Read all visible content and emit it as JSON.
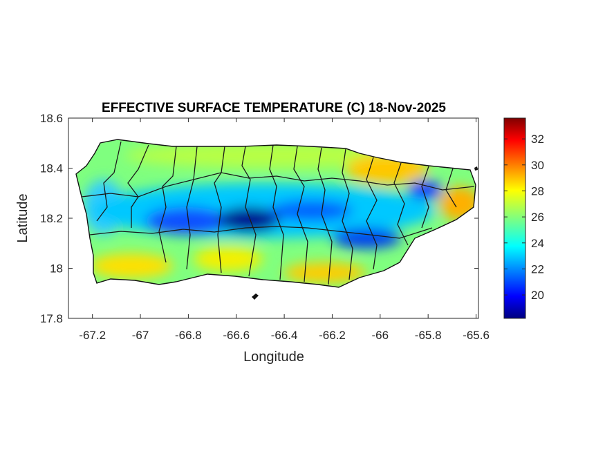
{
  "chart_data": {
    "type": "heatmap",
    "title": "EFFECTIVE SURFACE TEMPERATURE (C) 18-Nov-2025",
    "xlabel": "Longitude",
    "ylabel": "Latitude",
    "xlim": [
      -67.3,
      -65.59
    ],
    "ylim": [
      17.8,
      18.6
    ],
    "xticks": [
      -67.2,
      -67,
      -66.8,
      -66.6,
      -66.4,
      -66.2,
      -66,
      -65.8,
      -65.6
    ],
    "xtick_labels": [
      "-67.2",
      "-67",
      "-66.8",
      "-66.6",
      "-66.4",
      "-66.2",
      "-66",
      "-65.8",
      "-65.6"
    ],
    "yticks": [
      17.8,
      18,
      18.2,
      18.4,
      18.6
    ],
    "ytick_labels": [
      "17.8",
      "18",
      "18.2",
      "18.4",
      "18.6"
    ],
    "colorbar": {
      "colormap": "jet",
      "limits": [
        18.2,
        33.6
      ],
      "ticks": [
        20,
        22,
        24,
        26,
        28,
        30,
        32
      ],
      "tick_labels": [
        "20",
        "22",
        "24",
        "26",
        "28",
        "30",
        "32"
      ]
    },
    "value_pattern": "cooler (19-24 C) along central mountain spine and east peak near -65.8; warmer (26-30 C) along north-east and south coasts",
    "box": true,
    "grid": false
  }
}
